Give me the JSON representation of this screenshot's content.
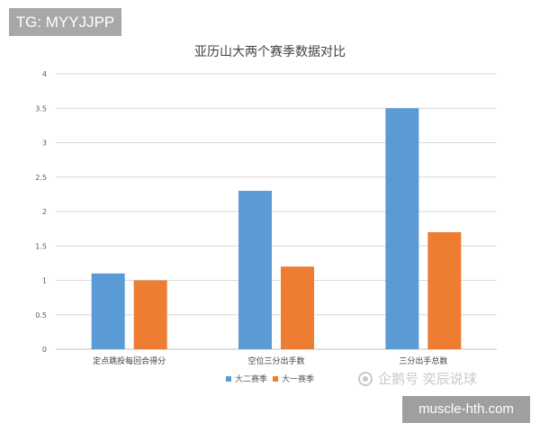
{
  "overlay": {
    "tag_label": "TG: MYYJJPP",
    "watermark": "企鹅号 奕辰说球",
    "source": "muscle-hth.com"
  },
  "chart_data": {
    "type": "bar",
    "title": "亚历山大两个赛季数据对比",
    "categories": [
      "定点跳投每回合得分",
      "空位三分出手数",
      "三分出手总数"
    ],
    "series": [
      {
        "name": "大二赛季",
        "values": [
          1.1,
          2.3,
          3.5
        ],
        "color": "#5b9bd5"
      },
      {
        "name": "大一赛季",
        "values": [
          1.0,
          1.2,
          1.7
        ],
        "color": "#ed7d31"
      }
    ],
    "yticks": [
      "0",
      "0.5",
      "1",
      "1.5",
      "2",
      "2.5",
      "3",
      "3.5",
      "4"
    ],
    "ylim": [
      0,
      4
    ],
    "grid": true,
    "legend_position": "bottom"
  }
}
